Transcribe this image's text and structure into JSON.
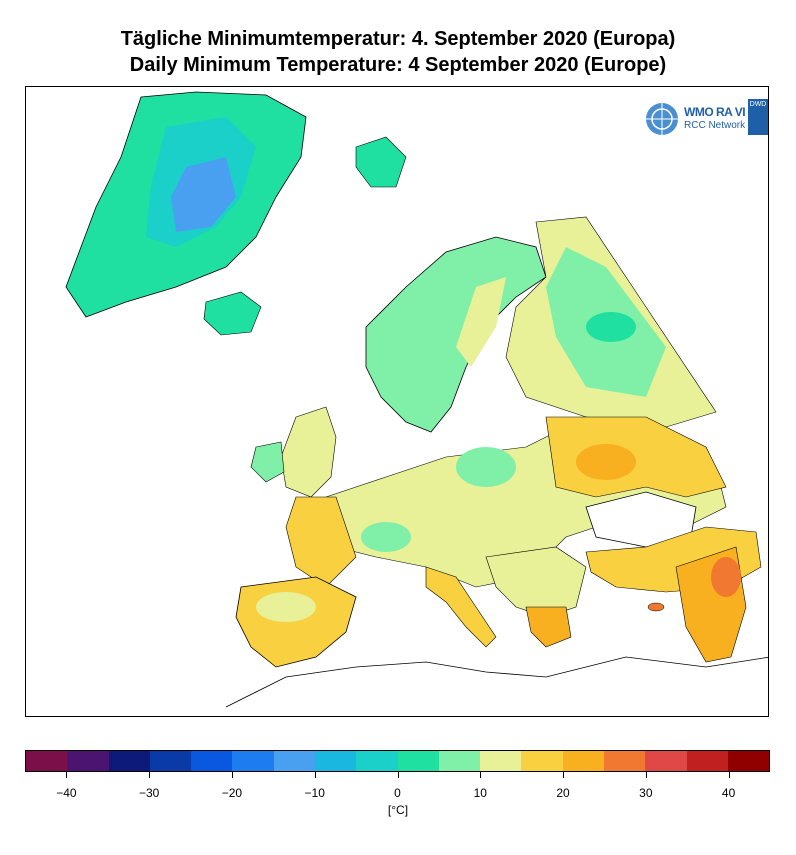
{
  "title_de": "Tägliche Minimumtemperatur:  4. September 2020  (Europa)",
  "title_en": "Daily Minimum Temperature:  4 September 2020  (Europe)",
  "logo": {
    "wmo_text": "WMO RA VI",
    "rcc_text": "RCC Network",
    "dwd_text": "DWD"
  },
  "colorbar": {
    "unit": "[°C]",
    "min": -45,
    "max": 45,
    "step": 5,
    "colors": [
      "#7a0f4a",
      "#4a1470",
      "#0d1a7a",
      "#0a3aa8",
      "#0a58e0",
      "#1c7cf0",
      "#4aa0f0",
      "#1ab8e0",
      "#1ad0c8",
      "#1fe0a0",
      "#80f0a8",
      "#e8f098",
      "#f8d040",
      "#f8b020",
      "#f07830",
      "#e04848",
      "#c02020",
      "#900000"
    ],
    "tick_labels": [
      "−40",
      "−30",
      "−20",
      "−10",
      "0",
      "10",
      "20",
      "30",
      "40"
    ],
    "tick_values": [
      -40,
      -30,
      -20,
      -10,
      0,
      10,
      20,
      30,
      40
    ]
  },
  "map": {
    "region": "Europe",
    "regions": [
      {
        "name": "greenland",
        "colors": [
          "#1fe0a0",
          "#1ad0c8",
          "#4aa0f0"
        ]
      },
      {
        "name": "iceland",
        "colors": [
          "#1fe0a0"
        ]
      },
      {
        "name": "scandinavia",
        "colors": [
          "#80f0a8",
          "#e8f098"
        ]
      },
      {
        "name": "western-russia",
        "colors": [
          "#80f0a8",
          "#e8f098"
        ]
      },
      {
        "name": "central-europe",
        "colors": [
          "#e8f098",
          "#80f0a8"
        ]
      },
      {
        "name": "iberia",
        "colors": [
          "#f8d040",
          "#e8f098"
        ]
      },
      {
        "name": "ukraine",
        "colors": [
          "#f8d040",
          "#f8b020"
        ]
      },
      {
        "name": "turkey-levant",
        "colors": [
          "#f8d040",
          "#f07830"
        ]
      }
    ]
  }
}
